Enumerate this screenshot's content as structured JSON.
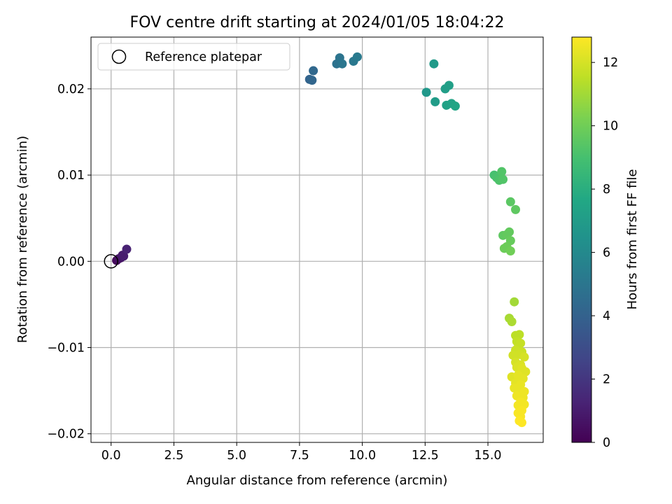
{
  "chart_data": {
    "type": "scatter",
    "title": "FOV centre drift starting at 2024/01/05 18:04:22",
    "xlabel": "Angular distance from reference (arcmin)",
    "ylabel": "Rotation from reference (arcmin)",
    "xlim": [
      -0.8,
      17.2
    ],
    "ylim": [
      -0.021,
      0.026
    ],
    "xticks": [
      0.0,
      2.5,
      5.0,
      7.5,
      10.0,
      12.5,
      15.0
    ],
    "xtick_labels": [
      "0.0",
      "2.5",
      "5.0",
      "7.5",
      "10.0",
      "12.5",
      "15.0"
    ],
    "yticks": [
      0.02,
      0.01,
      0.0,
      -0.01,
      -0.02
    ],
    "ytick_labels": [
      "0.02",
      "0.01",
      "0.00",
      "−0.01",
      "−0.02"
    ],
    "grid": true,
    "legend": {
      "location": "upper-left",
      "entries": [
        "Reference platepar"
      ]
    },
    "reference_point": {
      "x": 0.0,
      "y": 0.0
    },
    "colorbar": {
      "label": "Hours from first FF file",
      "colormap": "viridis",
      "range": [
        0,
        12.8
      ],
      "ticks": [
        0,
        2,
        4,
        6,
        8,
        10,
        12
      ],
      "tick_labels": [
        "0",
        "2",
        "4",
        "6",
        "8",
        "10",
        "12"
      ]
    },
    "points": [
      {
        "x": 0.22,
        "y": 0.0001,
        "h": 0.3
      },
      {
        "x": 0.3,
        "y": 0.0003,
        "h": 0.5
      },
      {
        "x": 0.38,
        "y": 0.0004,
        "h": 0.7
      },
      {
        "x": 0.45,
        "y": 0.0007,
        "h": 0.9
      },
      {
        "x": 0.5,
        "y": 0.0006,
        "h": 1.0
      },
      {
        "x": 0.62,
        "y": 0.0014,
        "h": 1.2
      },
      {
        "x": 7.9,
        "y": 0.0211,
        "h": 4.1
      },
      {
        "x": 8.0,
        "y": 0.021,
        "h": 4.2
      },
      {
        "x": 8.05,
        "y": 0.0221,
        "h": 4.3
      },
      {
        "x": 8.98,
        "y": 0.0229,
        "h": 4.8
      },
      {
        "x": 9.1,
        "y": 0.0236,
        "h": 4.9
      },
      {
        "x": 9.2,
        "y": 0.0229,
        "h": 5.0
      },
      {
        "x": 9.65,
        "y": 0.0232,
        "h": 5.1
      },
      {
        "x": 9.8,
        "y": 0.0237,
        "h": 5.2
      },
      {
        "x": 12.55,
        "y": 0.0196,
        "h": 6.8
      },
      {
        "x": 12.85,
        "y": 0.0229,
        "h": 6.9
      },
      {
        "x": 12.9,
        "y": 0.0185,
        "h": 7.0
      },
      {
        "x": 13.3,
        "y": 0.02,
        "h": 7.1
      },
      {
        "x": 13.45,
        "y": 0.0204,
        "h": 7.2
      },
      {
        "x": 13.35,
        "y": 0.0181,
        "h": 7.3
      },
      {
        "x": 13.55,
        "y": 0.0183,
        "h": 7.4
      },
      {
        "x": 13.7,
        "y": 0.018,
        "h": 7.5
      },
      {
        "x": 15.25,
        "y": 0.01,
        "h": 9.0
      },
      {
        "x": 15.35,
        "y": 0.0097,
        "h": 9.1
      },
      {
        "x": 15.45,
        "y": 0.0094,
        "h": 9.2
      },
      {
        "x": 15.55,
        "y": 0.0104,
        "h": 9.3
      },
      {
        "x": 15.6,
        "y": 0.0095,
        "h": 9.3
      },
      {
        "x": 15.9,
        "y": 0.0069,
        "h": 9.5
      },
      {
        "x": 16.1,
        "y": 0.006,
        "h": 9.6
      },
      {
        "x": 15.6,
        "y": 0.003,
        "h": 9.6
      },
      {
        "x": 15.75,
        "y": 0.0031,
        "h": 9.7
      },
      {
        "x": 15.85,
        "y": 0.0034,
        "h": 9.7
      },
      {
        "x": 15.9,
        "y": 0.0024,
        "h": 9.8
      },
      {
        "x": 15.65,
        "y": 0.0015,
        "h": 9.9
      },
      {
        "x": 15.75,
        "y": 0.0017,
        "h": 9.9
      },
      {
        "x": 15.9,
        "y": 0.0012,
        "h": 10.0
      },
      {
        "x": 16.05,
        "y": -0.0047,
        "h": 11.0
      },
      {
        "x": 15.85,
        "y": -0.0066,
        "h": 11.1
      },
      {
        "x": 15.95,
        "y": -0.007,
        "h": 11.2
      },
      {
        "x": 16.1,
        "y": -0.0086,
        "h": 11.5
      },
      {
        "x": 16.25,
        "y": -0.0085,
        "h": 11.5
      },
      {
        "x": 16.15,
        "y": -0.0093,
        "h": 11.6
      },
      {
        "x": 16.3,
        "y": -0.0095,
        "h": 11.7
      },
      {
        "x": 16.2,
        "y": -0.01,
        "h": 11.7
      },
      {
        "x": 16.1,
        "y": -0.0103,
        "h": 11.8
      },
      {
        "x": 16.35,
        "y": -0.0105,
        "h": 11.8
      },
      {
        "x": 16.0,
        "y": -0.0109,
        "h": 11.9
      },
      {
        "x": 16.25,
        "y": -0.0108,
        "h": 11.9
      },
      {
        "x": 16.45,
        "y": -0.0111,
        "h": 12.0
      },
      {
        "x": 16.1,
        "y": -0.0117,
        "h": 12.0
      },
      {
        "x": 16.3,
        "y": -0.012,
        "h": 12.1
      },
      {
        "x": 16.15,
        "y": -0.0123,
        "h": 12.1
      },
      {
        "x": 16.35,
        "y": -0.0124,
        "h": 12.2
      },
      {
        "x": 16.5,
        "y": -0.0128,
        "h": 12.2
      },
      {
        "x": 15.95,
        "y": -0.0134,
        "h": 12.2
      },
      {
        "x": 16.2,
        "y": -0.0132,
        "h": 12.3
      },
      {
        "x": 16.4,
        "y": -0.0136,
        "h": 12.3
      },
      {
        "x": 16.1,
        "y": -0.0141,
        "h": 12.3
      },
      {
        "x": 16.3,
        "y": -0.0143,
        "h": 12.4
      },
      {
        "x": 16.05,
        "y": -0.0147,
        "h": 12.4
      },
      {
        "x": 16.25,
        "y": -0.0149,
        "h": 12.4
      },
      {
        "x": 16.45,
        "y": -0.0151,
        "h": 12.5
      },
      {
        "x": 16.15,
        "y": -0.0156,
        "h": 12.5
      },
      {
        "x": 16.4,
        "y": -0.0158,
        "h": 12.5
      },
      {
        "x": 16.3,
        "y": -0.0163,
        "h": 12.6
      },
      {
        "x": 16.45,
        "y": -0.0166,
        "h": 12.6
      },
      {
        "x": 16.2,
        "y": -0.0167,
        "h": 12.6
      },
      {
        "x": 16.35,
        "y": -0.0173,
        "h": 12.7
      },
      {
        "x": 16.2,
        "y": -0.0176,
        "h": 12.7
      },
      {
        "x": 16.3,
        "y": -0.018,
        "h": 12.7
      },
      {
        "x": 16.25,
        "y": -0.0185,
        "h": 12.8
      },
      {
        "x": 16.35,
        "y": -0.0187,
        "h": 12.8
      }
    ]
  }
}
